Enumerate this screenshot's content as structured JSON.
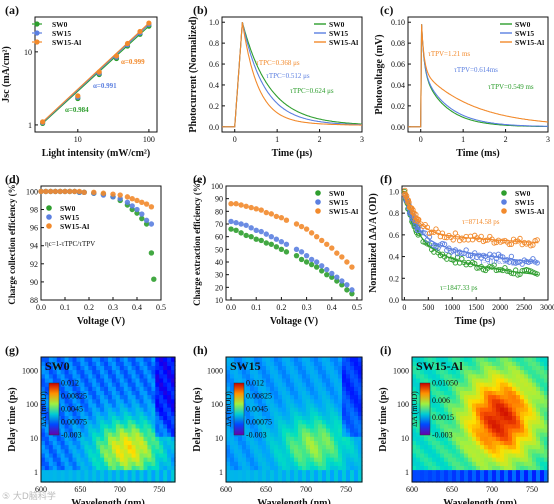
{
  "watermark": "⑤ 大D脑科学",
  "colors": {
    "sw0": "#2e9e2e",
    "sw15": "#5b7fe0",
    "swal": "#f28a2c"
  },
  "chart_data": [
    {
      "panel": "(a)",
      "type": "scatter",
      "xscale": "log",
      "yscale": "log",
      "xlabel": "Light intensity (mW/cm²)",
      "ylabel": "Jsc (mA/cm²)",
      "xticks": [
        "10",
        "100"
      ],
      "yticks": [
        "1",
        "10"
      ],
      "xlim": [
        2.5,
        130
      ],
      "ylim": [
        0.8,
        30
      ],
      "legend": [
        "SW0",
        "SW15",
        "SW15-Al"
      ],
      "annotations": [
        "α=0.999",
        "α=0.991",
        "α=0.984"
      ],
      "series": [
        {
          "name": "SW0",
          "x": [
            3.2,
            10,
            20,
            35,
            50,
            75,
            100
          ],
          "y": [
            1.05,
            2.3,
            4.9,
            8.1,
            12.0,
            17.4,
            22.5
          ],
          "alpha": 0.984
        },
        {
          "name": "SW15",
          "x": [
            3.2,
            10,
            20,
            35,
            50,
            75,
            100
          ],
          "y": [
            1.08,
            2.4,
            5.1,
            8.5,
            12.5,
            18.2,
            23.8
          ],
          "alpha": 0.991
        },
        {
          "name": "SW15-Al",
          "x": [
            3.2,
            10,
            20,
            35,
            50,
            75,
            100
          ],
          "y": [
            1.1,
            2.5,
            5.3,
            8.8,
            13.0,
            19.0,
            24.8
          ],
          "alpha": 0.999
        }
      ]
    },
    {
      "panel": "(b)",
      "type": "line",
      "xlabel": "Time (μs)",
      "ylabel": "Photocurrent (Normalized)",
      "xticks": [
        "0",
        "1",
        "2",
        "3"
      ],
      "yticks": [
        "0.0",
        "0.2",
        "0.4",
        "0.6",
        "0.8",
        "1.0"
      ],
      "xlim": [
        -0.3,
        3
      ],
      "ylim": [
        -0.05,
        1.05
      ],
      "legend": [
        "SW0",
        "SW15",
        "SW15-Al"
      ],
      "annotations": [
        "τTPC=0.368 μs",
        "τTPC=0.512 μs",
        "τTPC=0.624 μs"
      ],
      "series": [
        {
          "name": "SW0",
          "tau": 0.624
        },
        {
          "name": "SW15",
          "tau": 0.512
        },
        {
          "name": "SW15-Al",
          "tau": 0.368
        }
      ]
    },
    {
      "panel": "(c)",
      "type": "line",
      "xlabel": "Time (ms)",
      "ylabel": "Photovoltage (mV)",
      "xticks": [
        "0",
        "1",
        "2",
        "3"
      ],
      "yticks": [
        "0.00",
        "0.02",
        "0.04",
        "0.06",
        "0.08",
        "0.10"
      ],
      "xlim": [
        -0.3,
        3
      ],
      "ylim": [
        -0.005,
        0.105
      ],
      "legend": [
        "SW0",
        "SW15",
        "SW15-Al"
      ],
      "annotations": [
        "τTPV=1.21 ms",
        "τTPV=0.614ms",
        "τTPV=0.549 ms"
      ],
      "series": [
        {
          "name": "SW0",
          "tau": 0.549
        },
        {
          "name": "SW15",
          "tau": 0.614
        },
        {
          "name": "SW15-Al",
          "tau": 1.21
        }
      ]
    },
    {
      "panel": "(d)",
      "type": "scatter",
      "xlabel": "Voltage (V)",
      "ylabel": "Charge collection efficiency (%)",
      "xticks": [
        "0.0",
        "0.1",
        "0.2",
        "0.3",
        "0.4",
        "0.5"
      ],
      "yticks": [
        "88",
        "90",
        "92",
        "94",
        "96",
        "98",
        "100"
      ],
      "xlim": [
        0,
        0.5
      ],
      "ylim": [
        88,
        100.6
      ],
      "legend": [
        "SW0",
        "SW15",
        "SW15-Al"
      ],
      "annotations": [
        "ηc=1-τTPC/τTPV"
      ],
      "series": [
        {
          "name": "SW0",
          "x": [
            0,
            0.02,
            0.04,
            0.06,
            0.08,
            0.1,
            0.12,
            0.14,
            0.16,
            0.18,
            0.22,
            0.26,
            0.3,
            0.33,
            0.36,
            0.38,
            0.4,
            0.42,
            0.44,
            0.46,
            0.47
          ],
          "y": [
            100,
            100,
            100,
            100,
            100,
            100,
            100,
            100,
            99.9,
            99.9,
            99.8,
            99.7,
            99.4,
            99.0,
            98.5,
            98.0,
            97.6,
            97.0,
            96.4,
            93.2,
            90.3
          ]
        },
        {
          "name": "SW15",
          "x": [
            0,
            0.02,
            0.04,
            0.06,
            0.08,
            0.1,
            0.12,
            0.14,
            0.16,
            0.18,
            0.22,
            0.26,
            0.3,
            0.33,
            0.36,
            0.38,
            0.4,
            0.42,
            0.44,
            0.46
          ],
          "y": [
            100,
            100,
            100,
            100,
            100,
            100,
            100,
            100,
            99.9,
            99.9,
            99.8,
            99.6,
            99.4,
            99.2,
            98.8,
            98.4,
            98.0,
            97.5,
            96.8,
            96.4
          ]
        },
        {
          "name": "SW15-Al",
          "x": [
            0,
            0.02,
            0.04,
            0.06,
            0.08,
            0.1,
            0.12,
            0.14,
            0.16,
            0.18,
            0.22,
            0.26,
            0.3,
            0.33,
            0.36,
            0.38,
            0.4,
            0.42,
            0.44,
            0.46
          ],
          "y": [
            100,
            100,
            100,
            100,
            100,
            100,
            100,
            100,
            100,
            99.9,
            99.9,
            99.8,
            99.7,
            99.6,
            99.4,
            99.2,
            99.0,
            98.8,
            98.6,
            98.3
          ]
        }
      ]
    },
    {
      "panel": "(e)",
      "type": "scatter",
      "xlabel": "Voltage (V)",
      "ylabel": "Charge extraction efficiency (%)",
      "xticks": [
        "0.0",
        "0.1",
        "0.2",
        "0.3",
        "0.4",
        "0.5"
      ],
      "yticks": [
        "10",
        "20",
        "30",
        "40",
        "50",
        "60",
        "70",
        "80",
        "90",
        "100"
      ],
      "xlim": [
        -0.02,
        0.52
      ],
      "ylim": [
        10,
        100
      ],
      "legend": [
        "SW0",
        "SW15",
        "SW15-Al"
      ],
      "series": [
        {
          "name": "SW0",
          "x": [
            0,
            0.02,
            0.04,
            0.06,
            0.08,
            0.1,
            0.12,
            0.14,
            0.16,
            0.18,
            0.2,
            0.22,
            0.26,
            0.28,
            0.3,
            0.32,
            0.34,
            0.36,
            0.38,
            0.4,
            0.42,
            0.44,
            0.46,
            0.48
          ],
          "y": [
            66,
            65,
            63,
            61,
            60,
            58,
            57,
            55,
            54,
            52,
            50,
            48,
            45,
            42,
            40,
            38,
            36,
            33,
            30,
            28,
            25,
            22,
            18,
            15
          ]
        },
        {
          "name": "SW15",
          "x": [
            0,
            0.02,
            0.04,
            0.06,
            0.08,
            0.1,
            0.12,
            0.14,
            0.16,
            0.18,
            0.2,
            0.22,
            0.26,
            0.28,
            0.3,
            0.32,
            0.34,
            0.36,
            0.38,
            0.4,
            0.42,
            0.44,
            0.46,
            0.48
          ],
          "y": [
            72,
            71,
            70,
            69,
            67,
            65,
            64,
            62,
            60,
            58,
            56,
            54,
            50,
            48,
            45,
            42,
            40,
            37,
            34,
            31,
            28,
            25,
            22,
            18
          ]
        },
        {
          "name": "SW15-Al",
          "x": [
            0,
            0.02,
            0.04,
            0.06,
            0.08,
            0.1,
            0.12,
            0.14,
            0.16,
            0.18,
            0.2,
            0.22,
            0.26,
            0.28,
            0.3,
            0.32,
            0.34,
            0.36,
            0.38,
            0.4,
            0.42,
            0.44,
            0.46,
            0.48
          ],
          "y": [
            86,
            86,
            85,
            84,
            83,
            82,
            81,
            79,
            78,
            76,
            75,
            73,
            70,
            68,
            66,
            63,
            60,
            57,
            54,
            51,
            47,
            44,
            40,
            36
          ]
        }
      ]
    },
    {
      "panel": "(f)",
      "type": "scatter",
      "xlabel": "Time (ps)",
      "ylabel": "Normalized ΔA/A (OD)",
      "xticks": [
        "0",
        "500",
        "1000",
        "1500",
        "2000",
        "2500",
        "3000"
      ],
      "yticks": [
        "0.0",
        "0.2",
        "0.4",
        "0.6",
        "0.8",
        "1.0"
      ],
      "xlim": [
        -50,
        3000
      ],
      "ylim": [
        0,
        1.05
      ],
      "legend": [
        "SW0",
        "SW15",
        "SW15-Al"
      ],
      "annotations": [
        "τ=8714.58 ps",
        "τ=3106.33 ps",
        "τ=1847.33 ps"
      ],
      "series": [
        {
          "name": "SW0",
          "tau": 1847.33,
          "plateau": 0.15
        },
        {
          "name": "SW15",
          "tau": 3106.33,
          "plateau": 0.2
        },
        {
          "name": "SW15-Al",
          "tau": 8714.58,
          "plateau": 0.3
        }
      ]
    },
    {
      "panel": "(g)",
      "type": "heatmap",
      "title": "SW0",
      "xlabel": "Wavelength (nm)",
      "ylabel": "Delay time (ps)",
      "xticks": [
        "600",
        "650",
        "700",
        "750"
      ],
      "yticks": [
        "1",
        "10",
        "100",
        "1000"
      ],
      "xlim": [
        600,
        770
      ],
      "ylim": [
        0.5,
        2500
      ],
      "colorbar": {
        "label": "ΔA (mOD)",
        "ticks": [
          "0.012",
          "0.00825",
          "0.0045",
          "0.00075",
          "-0.003"
        ]
      }
    },
    {
      "panel": "(h)",
      "type": "heatmap",
      "title": "SW15",
      "xlabel": "Wavelength (nm)",
      "ylabel": "Delay time (ps)",
      "xticks": [
        "600",
        "650",
        "700",
        "750"
      ],
      "yticks": [
        "1",
        "10",
        "100",
        "1000"
      ],
      "xlim": [
        600,
        770
      ],
      "ylim": [
        0.5,
        2500
      ],
      "colorbar": {
        "label": "ΔA (mOD)",
        "ticks": [
          "0.012",
          "0.00825",
          "0.0045",
          "0.00075",
          "-0.003"
        ]
      }
    },
    {
      "panel": "(i)",
      "type": "heatmap",
      "title": "SW15-Al",
      "xlabel": "Wavelength (nm)",
      "ylabel": "Delay time (ps)",
      "xticks": [
        "600",
        "650",
        "700",
        "750"
      ],
      "yticks": [
        "1",
        "10",
        "100",
        "1000"
      ],
      "xlim": [
        600,
        770
      ],
      "ylim": [
        0.5,
        2500
      ],
      "colorbar": {
        "label": "ΔA (mOD)",
        "ticks": [
          "0.01050",
          "0.006",
          "0.0015",
          "-0.003"
        ]
      }
    }
  ]
}
